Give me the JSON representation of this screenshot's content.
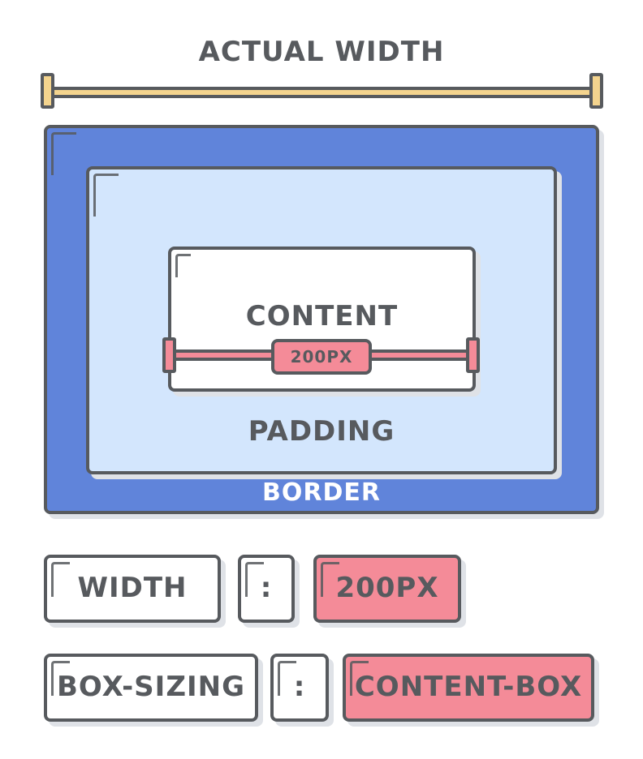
{
  "title": "ACTUAL WIDTH",
  "box_model": {
    "content_label": "CONTENT",
    "content_width": "200PX",
    "padding_label": "PADDING",
    "border_label": "BORDER"
  },
  "css_rules": [
    {
      "property": "WIDTH",
      "separator": ":",
      "value": "200PX"
    },
    {
      "property": "BOX-SIZING",
      "separator": ":",
      "value": "CONTENT-BOX"
    }
  ],
  "colors": {
    "border": "#6084da",
    "padding": "#d3e6fd",
    "content": "#ffffff",
    "actual_width_ruler": "#f4d48e",
    "content_width_ruler": "#f48b98",
    "outline": "#575a5e"
  }
}
